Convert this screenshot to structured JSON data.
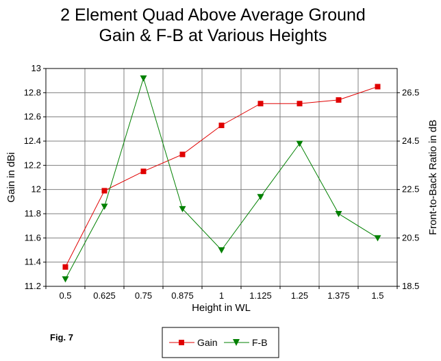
{
  "chart_data": {
    "type": "line",
    "title": [
      "2 Element Quad Above Average Ground",
      "Gain & F-B at Various Heights"
    ],
    "xlabel": "Height in WL",
    "ylabel_left": "Gain in dBi",
    "ylabel_right": "Front-to-Back Ratio in dB",
    "categories": [
      "0.5",
      "0.625",
      "0.75",
      "0.875",
      "1",
      "1.125",
      "1.25",
      "1.375",
      "1.5"
    ],
    "ylim_left": [
      11.2,
      13
    ],
    "yticks_left": [
      "11.2",
      "11.4",
      "11.6",
      "11.8",
      "12",
      "12.2",
      "12.4",
      "12.6",
      "12.8",
      "13"
    ],
    "ylim_right": [
      18.5,
      27.5
    ],
    "yticks_right": [
      "18.5",
      "20.5",
      "22.5",
      "24.5",
      "26.5"
    ],
    "grid": true,
    "legend_position": "bottom-center",
    "series": [
      {
        "name": "Gain",
        "axis": "left",
        "color": "#e00000",
        "marker": "square",
        "values": [
          11.36,
          11.99,
          12.15,
          12.29,
          12.53,
          12.71,
          12.71,
          12.74,
          12.85
        ]
      },
      {
        "name": "F-B",
        "axis": "right",
        "color": "#008000",
        "marker": "triangle-down",
        "values": [
          18.8,
          21.8,
          27.1,
          21.7,
          20.0,
          22.2,
          24.4,
          21.5,
          20.5
        ]
      }
    ]
  },
  "annotations": {
    "fig_label": "Fig. 7"
  }
}
